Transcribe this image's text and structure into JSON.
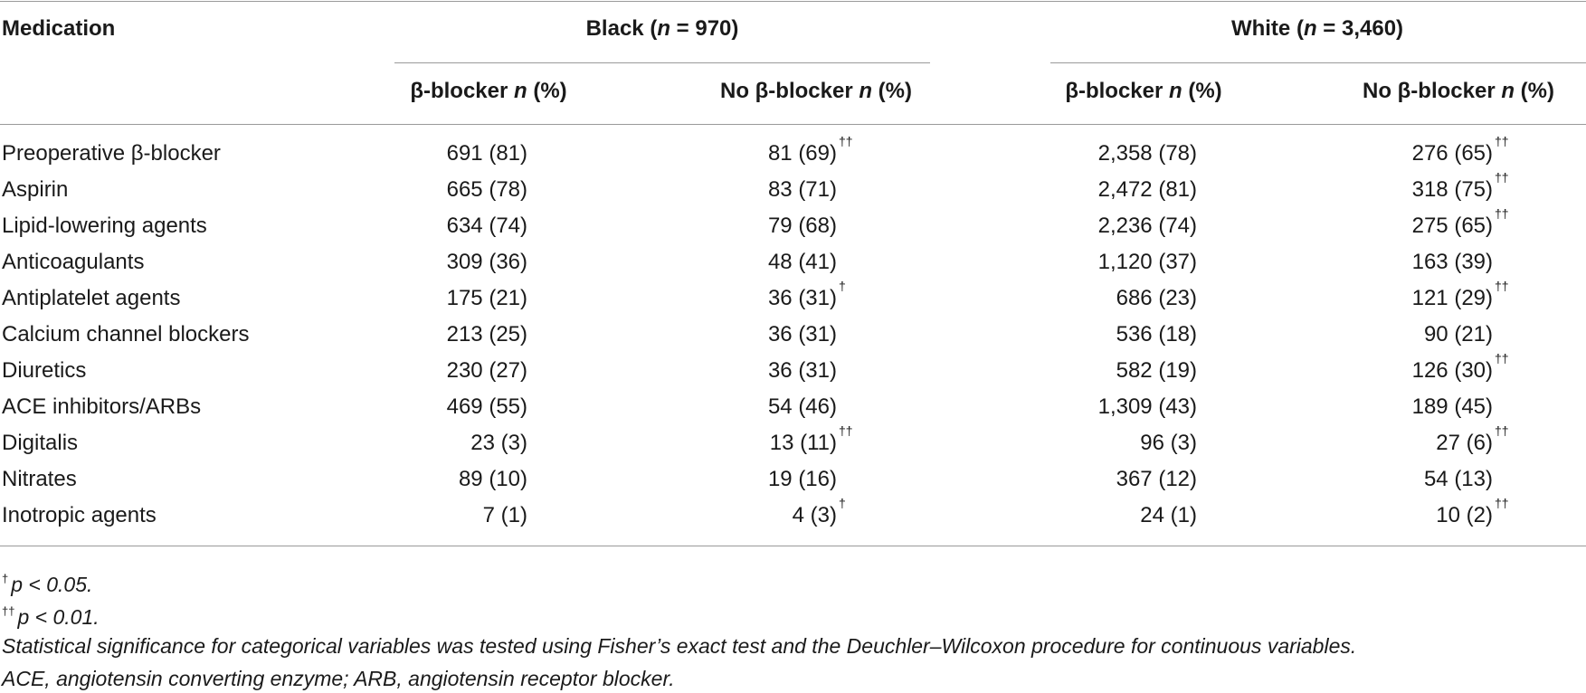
{
  "table": {
    "header": {
      "medication": "Medication",
      "groups": [
        {
          "label": "Black",
          "n_label": "n",
          "n_value": "970"
        },
        {
          "label": "White",
          "n_label": "n",
          "n_value": "3,460"
        }
      ],
      "sub_columns": [
        {
          "text": "β-blocker",
          "n": "n",
          "unit": "(%)"
        },
        {
          "text": "No β-blocker",
          "n": "n",
          "unit": "(%)"
        },
        {
          "text": "β-blocker",
          "n": "n",
          "unit": "(%)"
        },
        {
          "text": "No β-blocker",
          "n": "n",
          "unit": "(%)"
        }
      ]
    },
    "rows": [
      {
        "label": "Preoperative β-blocker",
        "cells": [
          {
            "v": "691 (81)",
            "s": ""
          },
          {
            "v": "81 (69)",
            "s": "††"
          },
          {
            "v": "2,358 (78)",
            "s": ""
          },
          {
            "v": "276 (65)",
            "s": "††"
          }
        ]
      },
      {
        "label": "Aspirin",
        "cells": [
          {
            "v": "665 (78)",
            "s": ""
          },
          {
            "v": "83 (71)",
            "s": ""
          },
          {
            "v": "2,472 (81)",
            "s": ""
          },
          {
            "v": "318 (75)",
            "s": "††"
          }
        ]
      },
      {
        "label": "Lipid-lowering agents",
        "cells": [
          {
            "v": "634 (74)",
            "s": ""
          },
          {
            "v": "79 (68)",
            "s": ""
          },
          {
            "v": "2,236 (74)",
            "s": ""
          },
          {
            "v": "275 (65)",
            "s": "††"
          }
        ]
      },
      {
        "label": "Anticoagulants",
        "cells": [
          {
            "v": "309 (36)",
            "s": ""
          },
          {
            "v": "48 (41)",
            "s": ""
          },
          {
            "v": "1,120 (37)",
            "s": ""
          },
          {
            "v": "163 (39)",
            "s": ""
          }
        ]
      },
      {
        "label": "Antiplatelet agents",
        "cells": [
          {
            "v": "175 (21)",
            "s": ""
          },
          {
            "v": "36 (31)",
            "s": "†"
          },
          {
            "v": "686 (23)",
            "s": ""
          },
          {
            "v": "121 (29)",
            "s": "††"
          }
        ]
      },
      {
        "label": "Calcium channel blockers",
        "cells": [
          {
            "v": "213 (25)",
            "s": ""
          },
          {
            "v": "36 (31)",
            "s": ""
          },
          {
            "v": "536 (18)",
            "s": ""
          },
          {
            "v": "90 (21)",
            "s": ""
          }
        ]
      },
      {
        "label": "Diuretics",
        "cells": [
          {
            "v": "230 (27)",
            "s": ""
          },
          {
            "v": "36 (31)",
            "s": ""
          },
          {
            "v": "582 (19)",
            "s": ""
          },
          {
            "v": "126 (30)",
            "s": "††"
          }
        ]
      },
      {
        "label": "ACE inhibitors/ARBs",
        "cells": [
          {
            "v": "469 (55)",
            "s": ""
          },
          {
            "v": "54 (46)",
            "s": ""
          },
          {
            "v": "1,309 (43)",
            "s": ""
          },
          {
            "v": "189 (45)",
            "s": ""
          }
        ]
      },
      {
        "label": "Digitalis",
        "cells": [
          {
            "v": "23 (3)",
            "s": ""
          },
          {
            "v": "13 (11)",
            "s": "††"
          },
          {
            "v": "96 (3)",
            "s": ""
          },
          {
            "v": "27 (6)",
            "s": "††"
          }
        ]
      },
      {
        "label": "Nitrates",
        "cells": [
          {
            "v": "89 (10)",
            "s": ""
          },
          {
            "v": "19 (16)",
            "s": ""
          },
          {
            "v": "367 (12)",
            "s": ""
          },
          {
            "v": "54 (13)",
            "s": ""
          }
        ]
      },
      {
        "label": "Inotropic agents",
        "cells": [
          {
            "v": "7 (1)",
            "s": ""
          },
          {
            "v": "4 (3)",
            "s": "†"
          },
          {
            "v": "24 (1)",
            "s": ""
          },
          {
            "v": "10 (2)",
            "s": "††"
          }
        ]
      }
    ]
  },
  "footnotes": [
    {
      "mark": "†",
      "text": "p < 0.05."
    },
    {
      "mark": "††",
      "text": "p < 0.01."
    },
    {
      "mark": "",
      "text": "Statistical significance for categorical variables was tested using Fisher’s exact test and the Deuchler–Wilcoxon procedure for continuous variables."
    },
    {
      "mark": "",
      "text": "ACE, angiotensin converting enzyme; ARB, angiotensin receptor blocker."
    }
  ]
}
